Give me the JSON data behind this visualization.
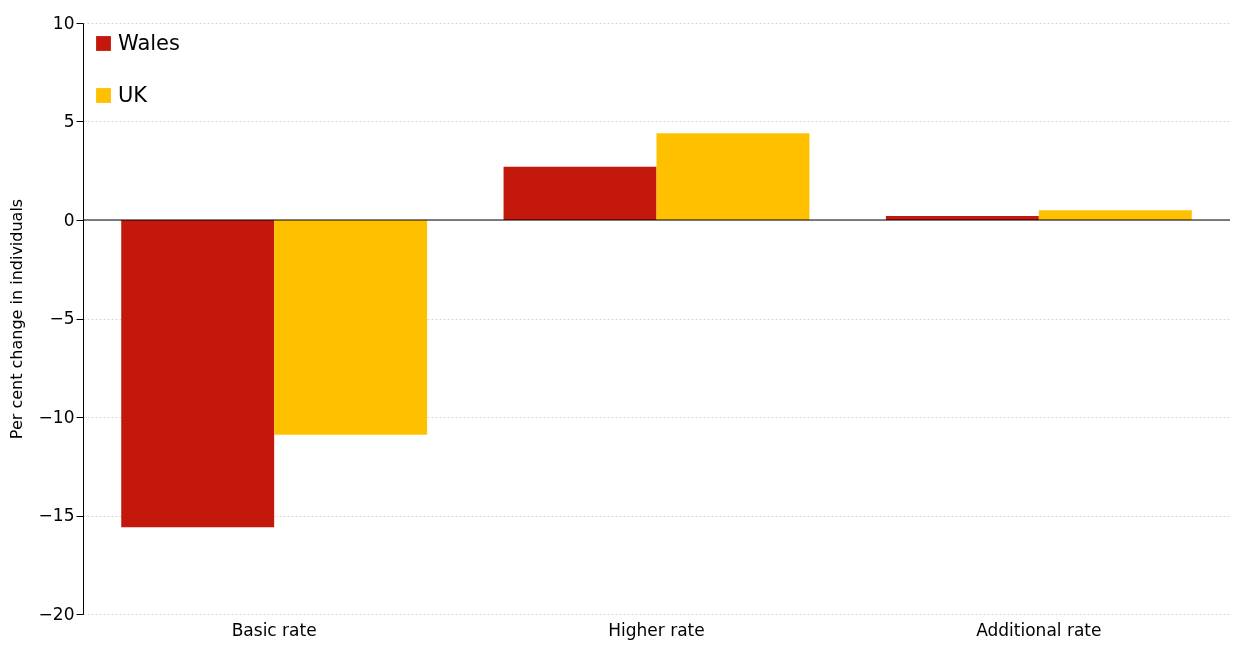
{
  "chart_data": {
    "type": "bar",
    "ylabel": "Per cent change in individuals",
    "categories": [
      "Basic rate",
      "Higher rate",
      "Additional rate"
    ],
    "series": [
      {
        "name": "Wales",
        "color": "#c3180b",
        "values": [
          -15.6,
          2.7,
          0.2
        ]
      },
      {
        "name": "UK",
        "color": "#ffc000",
        "values": [
          -10.9,
          4.4,
          0.5
        ]
      }
    ],
    "ylim": [
      -20,
      10
    ],
    "yticks": [
      -20,
      -15,
      -10,
      -5,
      0,
      5,
      10
    ],
    "grid": "y",
    "legend": "top left"
  }
}
